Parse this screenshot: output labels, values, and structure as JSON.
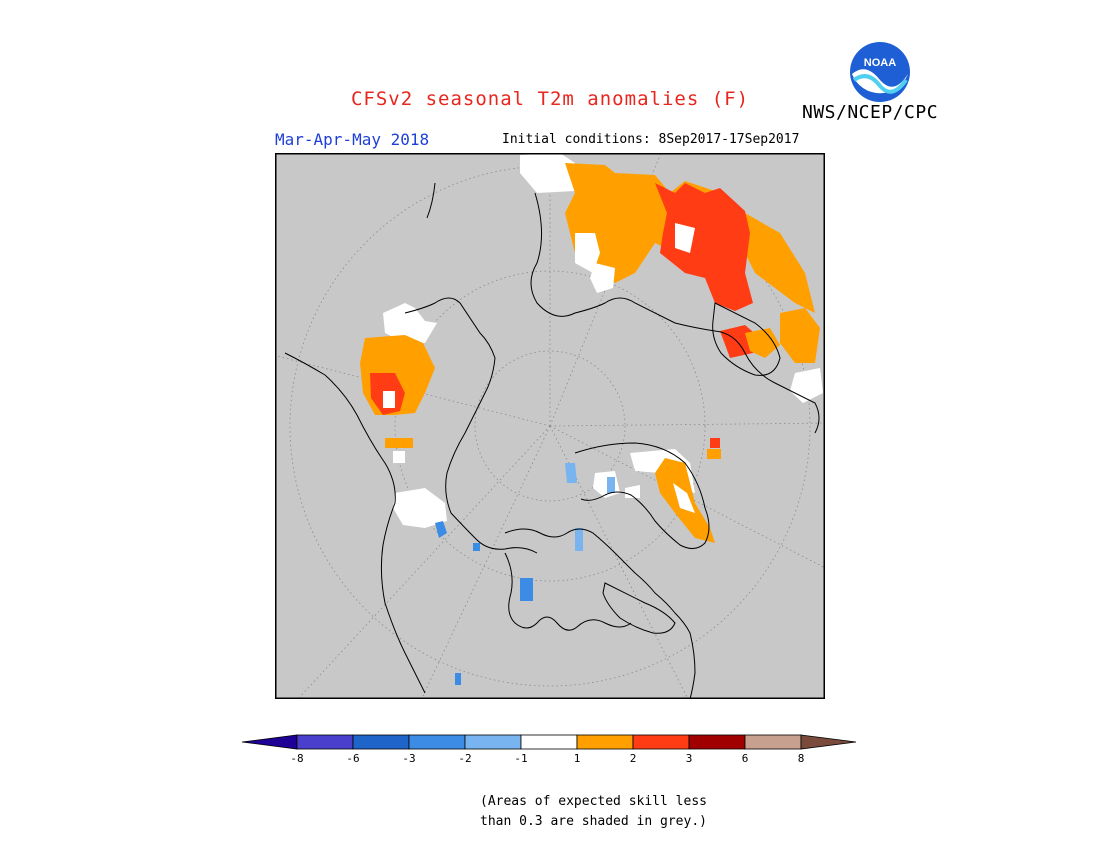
{
  "header": {
    "title": "CFSv2 seasonal T2m anomalies (F)",
    "organization": "NWS/NCEP/CPC",
    "logo_text": "NOAA",
    "season": "Mar-Apr-May 2018",
    "initial_conditions": "Initial conditions: 8Sep2017-17Sep2017"
  },
  "map": {
    "projection": "north-polar-stereographic",
    "background_color": "#c8c8c8",
    "grid": true
  },
  "legend": {
    "tick_labels": [
      "-8",
      "-6",
      "-3",
      "-2",
      "-1",
      "1",
      "2",
      "3",
      "6",
      "8"
    ],
    "colors": [
      "#1e0096",
      "#4a3fcc",
      "#1f64c8",
      "#3c8ce6",
      "#78b4f0",
      "#ffffff",
      "#ffa000",
      "#ff3c14",
      "#a00000",
      "#c8a090",
      "#7a4a3a"
    ]
  },
  "footnote": {
    "line1": "(Areas of expected skill less",
    "line2": "than 0.3 are shaded in grey.)"
  }
}
